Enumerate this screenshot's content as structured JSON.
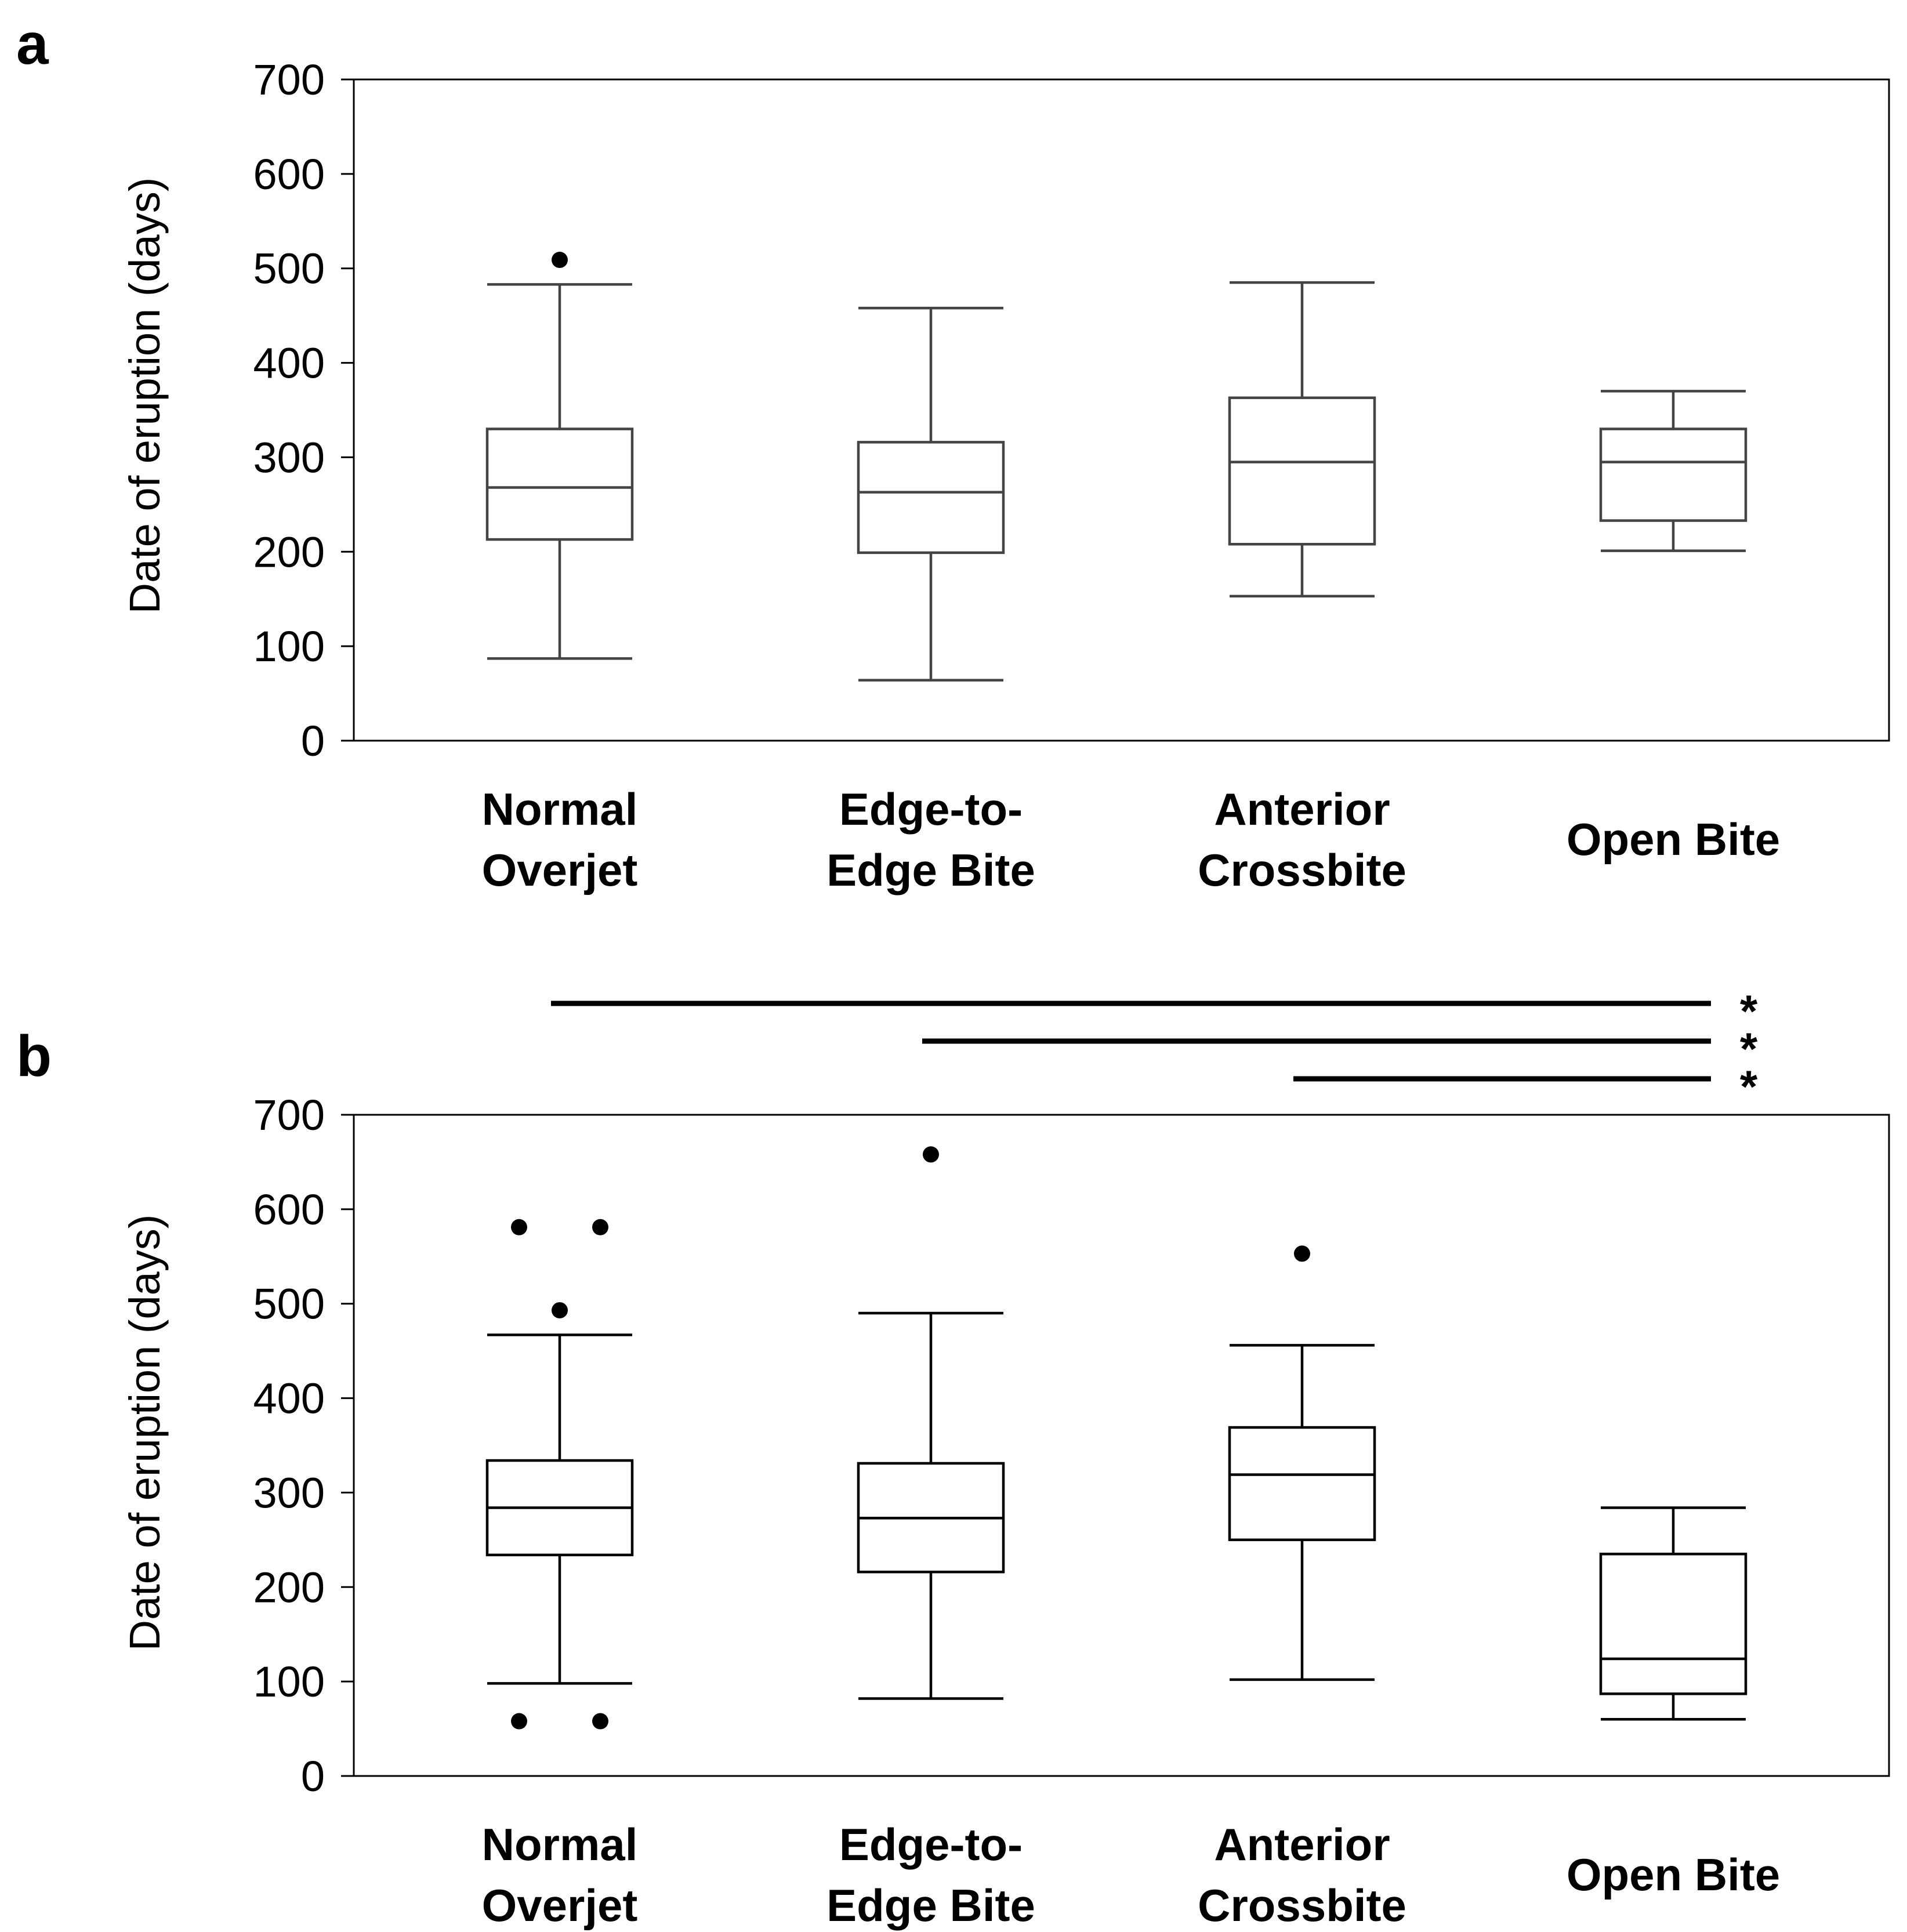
{
  "chart_data": [
    {
      "panel": "a",
      "type": "boxplot",
      "ylabel": "Date of eruption (days)",
      "ylim": [
        0,
        700
      ],
      "yticks": [
        0,
        100,
        200,
        300,
        400,
        500,
        600,
        700
      ],
      "categories": [
        {
          "line1": "Normal",
          "line2": "Overjet"
        },
        {
          "line1": "Edge-to-",
          "line2": "Edge Bite"
        },
        {
          "line1": "Anterior",
          "line2": "Crossbite"
        },
        {
          "line1": "Open Bite",
          "line2": ""
        }
      ],
      "boxes": [
        {
          "min": 87,
          "q1": 213,
          "median": 268,
          "q3": 330,
          "max": 483,
          "outliers": [
            {
              "value": 509,
              "offset": 0
            }
          ]
        },
        {
          "min": 64,
          "q1": 199,
          "median": 263,
          "q3": 316,
          "max": 458,
          "outliers": []
        },
        {
          "min": 153,
          "q1": 208,
          "median": 295,
          "q3": 363,
          "max": 485,
          "outliers": []
        },
        {
          "min": 201,
          "q1": 233,
          "median": 295,
          "q3": 330,
          "max": 370,
          "outliers": []
        }
      ]
    },
    {
      "panel": "b",
      "type": "boxplot",
      "ylabel": "Date of eruption (days)",
      "ylim": [
        0,
        700
      ],
      "yticks": [
        0,
        100,
        200,
        300,
        400,
        500,
        600,
        700
      ],
      "categories": [
        {
          "line1": "Normal",
          "line2": "Overjet"
        },
        {
          "line1": "Edge-to-",
          "line2": "Edge Bite"
        },
        {
          "line1": "Anterior",
          "line2": "Crossbite"
        },
        {
          "line1": "Open Bite",
          "line2": ""
        }
      ],
      "boxes": [
        {
          "min": 98,
          "q1": 234,
          "median": 284,
          "q3": 334,
          "max": 467,
          "outliers": [
            {
              "value": 581,
              "offset": -0.15
            },
            {
              "value": 581,
              "offset": 0.15
            },
            {
              "value": 493,
              "offset": 0
            },
            {
              "value": 58,
              "offset": -0.15
            },
            {
              "value": 58,
              "offset": 0.15
            }
          ]
        },
        {
          "min": 82,
          "q1": 216,
          "median": 273,
          "q3": 331,
          "max": 490,
          "outliers": [
            {
              "value": 658,
              "offset": 0
            }
          ]
        },
        {
          "min": 102,
          "q1": 250,
          "median": 319,
          "q3": 369,
          "max": 456,
          "outliers": [
            {
              "value": 553,
              "offset": 0
            }
          ]
        },
        {
          "min": 60,
          "q1": 87,
          "median": 124,
          "q3": 235,
          "max": 284,
          "outliers": []
        }
      ],
      "significance": [
        {
          "from": 0,
          "to": 3,
          "label": "*"
        },
        {
          "from": 1,
          "to": 3,
          "label": "*"
        },
        {
          "from": 2,
          "to": 3,
          "label": "*"
        }
      ]
    }
  ]
}
